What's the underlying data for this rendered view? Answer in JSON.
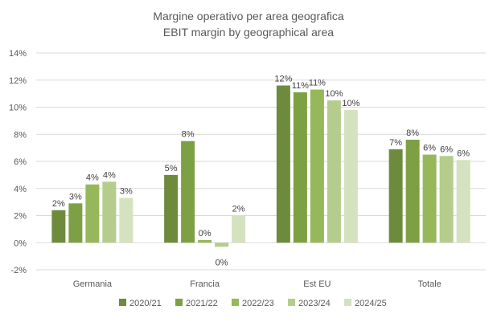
{
  "chart_data": {
    "type": "bar",
    "title": "Margine operativo per area geografica",
    "subtitle": "EBIT margin by geographical area",
    "xlabel": "",
    "ylabel": "",
    "ylim": [
      -2,
      14
    ],
    "yticks": [
      -2,
      0,
      2,
      4,
      6,
      8,
      10,
      12,
      14
    ],
    "ytick_labels": [
      "-2%",
      "0%",
      "2%",
      "4%",
      "6%",
      "8%",
      "10%",
      "12%",
      "14%"
    ],
    "grid": true,
    "legend_position": "bottom",
    "categories": [
      "Germania",
      "Francia",
      "Est EU",
      "Totale"
    ],
    "series": [
      {
        "name": "2020/21",
        "color": "#6e8b3d",
        "values": [
          2.4,
          5.0,
          11.6,
          6.9
        ],
        "labels": [
          "2%",
          "5%",
          "12%",
          "7%"
        ]
      },
      {
        "name": "2021/22",
        "color": "#7da044",
        "values": [
          2.9,
          7.5,
          11.1,
          7.6
        ],
        "labels": [
          "3%",
          "8%",
          "11%",
          "8%"
        ]
      },
      {
        "name": "2022/23",
        "color": "#97b85a",
        "values": [
          4.3,
          0.2,
          11.3,
          6.5
        ],
        "labels": [
          "4%",
          "0%",
          "11%",
          "6%"
        ]
      },
      {
        "name": "2023/24",
        "color": "#b4cd8c",
        "values": [
          4.5,
          -0.3,
          10.5,
          6.4
        ],
        "labels": [
          "4%",
          "0%",
          "10%",
          "6%"
        ]
      },
      {
        "name": "2024/25",
        "color": "#d4e2bf",
        "values": [
          3.3,
          2.0,
          9.8,
          6.1
        ],
        "labels": [
          "3%",
          "2%",
          "10%",
          "6%"
        ]
      }
    ]
  }
}
